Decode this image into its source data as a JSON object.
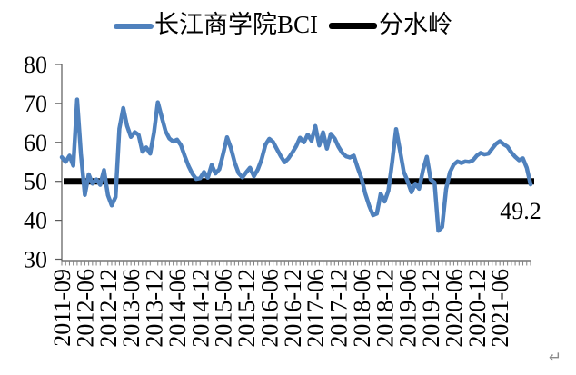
{
  "legend": {
    "bci_label": "长江商学院BCI",
    "watershed_label": "分水岭"
  },
  "annotation": {
    "last_value": "49.2"
  },
  "paragraph_mark": "↵",
  "colors": {
    "bci_line": "#4F81BD",
    "watershed_line": "#000000",
    "axis": "#595959",
    "tick": "#808080",
    "text": "#000000"
  },
  "chart_data": {
    "type": "line",
    "title": "",
    "xlabel": "",
    "ylabel": "",
    "ylim": [
      30,
      80
    ],
    "y_ticks": [
      80,
      70,
      60,
      50,
      40,
      30
    ],
    "grid": false,
    "legend_position": "top",
    "x_tick_labels": [
      "2011-09",
      "2012-06",
      "2012-12",
      "2013-06",
      "2013-12",
      "2014-06",
      "2014-12",
      "2015-06",
      "2015-12",
      "2016-06",
      "2016-12",
      "2017-06",
      "2017-12",
      "2018-06",
      "2018-12",
      "2019-06",
      "2019-12",
      "2020-06",
      "2020-12",
      "2021-06"
    ],
    "x_label_every_n_points": 6,
    "series": [
      {
        "name": "长江商学院BCI",
        "color": "#4F81BD",
        "values": [
          56.2,
          55.0,
          56.6,
          54.0,
          71.0,
          57.0,
          46.5,
          51.8,
          49.4,
          50.5,
          49.1,
          52.9,
          46.4,
          43.8,
          46.0,
          63.5,
          68.8,
          64.2,
          61.4,
          62.6,
          61.9,
          57.6,
          58.7,
          57.1,
          62.5,
          70.3,
          66.5,
          62.9,
          61.0,
          60.2,
          60.7,
          59.3,
          56.5,
          53.9,
          51.9,
          50.6,
          50.8,
          52.4,
          50.9,
          54.2,
          52.0,
          53.1,
          57.0,
          61.3,
          58.6,
          54.9,
          52.1,
          51.0,
          52.3,
          53.5,
          51.3,
          53.0,
          55.6,
          59.4,
          60.9,
          60.1,
          58.2,
          56.4,
          54.9,
          55.9,
          57.4,
          59.0,
          61.2,
          60.0,
          62.0,
          60.4,
          64.2,
          59.2,
          62.6,
          58.4,
          62.2,
          61.0,
          58.9,
          57.3,
          56.4,
          56.1,
          56.6,
          53.5,
          50.8,
          46.8,
          43.7,
          41.3,
          41.7,
          46.8,
          44.8,
          47.6,
          55.0,
          63.4,
          58.0,
          52.5,
          50.0,
          47.2,
          49.4,
          48.1,
          52.9,
          56.3,
          50.5,
          49.7,
          37.3,
          38.3,
          48.0,
          52.3,
          54.3,
          55.1,
          54.7,
          55.1,
          55.0,
          55.4,
          56.6,
          57.3,
          56.9,
          57.1,
          58.4,
          59.6,
          60.3,
          59.5,
          58.9,
          57.4,
          56.3,
          55.4,
          55.9,
          53.5,
          49.2
        ]
      },
      {
        "name": "分水岭",
        "color": "#000000",
        "constant": 50
      }
    ],
    "last_value": 49.2
  }
}
